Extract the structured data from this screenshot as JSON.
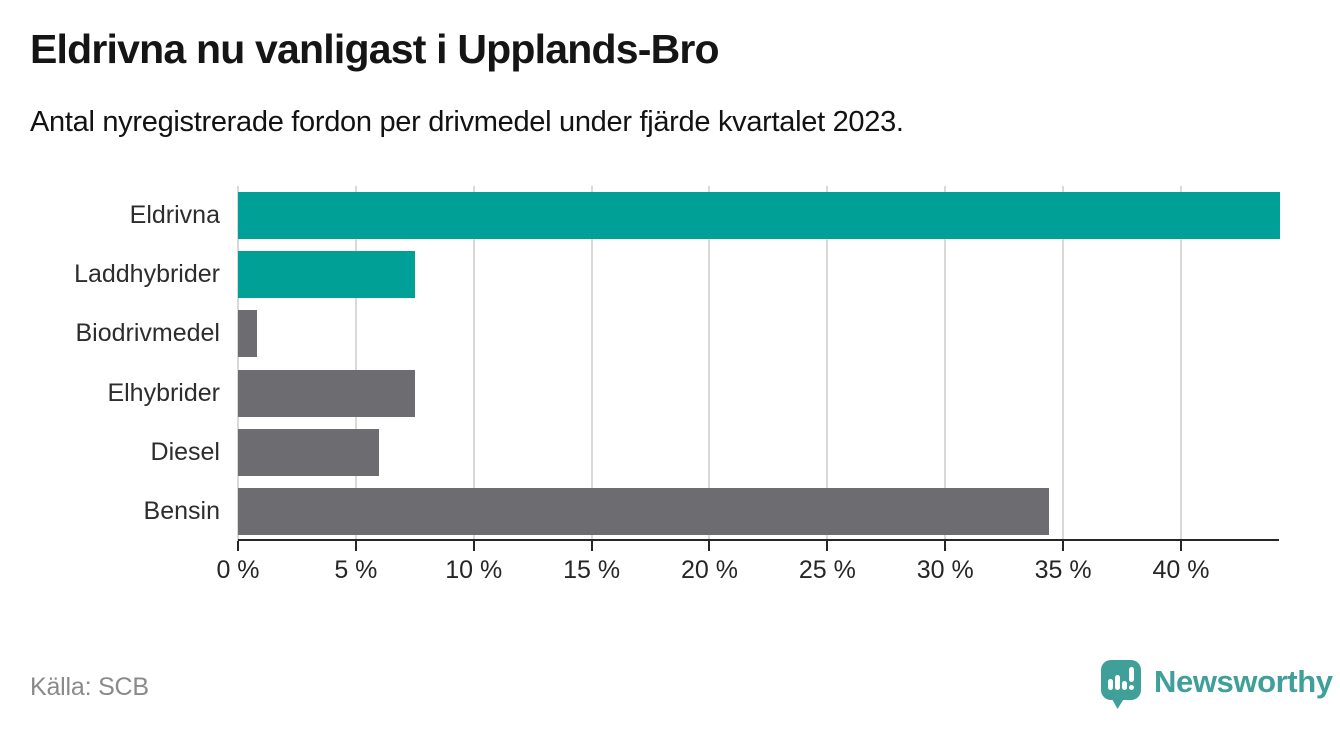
{
  "header": {
    "title": "Eldrivna nu vanligast i Upplands-Bro",
    "subtitle": "Antal nyregistrerade fordon per drivmedel under fjärde kvartalet 2023."
  },
  "chart_data": {
    "type": "bar",
    "orientation": "horizontal",
    "title": "Eldrivna nu vanligast i Upplands-Bro",
    "subtitle": "Antal nyregistrerade fordon per drivmedel under fjärde kvartalet 2023.",
    "categories": [
      "Eldrivna",
      "Laddhybrider",
      "Biodrivmedel",
      "Elhybrider",
      "Diesel",
      "Bensin"
    ],
    "values": [
      44.2,
      7.5,
      0.8,
      7.5,
      6.0,
      34.4
    ],
    "unit": "%",
    "bar_colors": [
      "#00a096",
      "#00a096",
      "#6c6c71",
      "#6c6c71",
      "#6c6c71",
      "#6c6c71"
    ],
    "xlim": [
      0,
      44.2
    ],
    "xticks": [
      0,
      5,
      10,
      15,
      20,
      25,
      30,
      35,
      40
    ],
    "xtick_suffix": " %",
    "grid": true,
    "legend": false
  },
  "colors": {
    "teal": "#00a096",
    "gray": "#6c6c71",
    "grid": "#d9d9d9",
    "axis": "#262626",
    "logo": "#3f9f99"
  },
  "footer": {
    "source": "Källa: SCB",
    "brand": "Newsworthy"
  },
  "icons": {
    "logo": "newsworthy-speech-bubble-barchart-icon"
  }
}
